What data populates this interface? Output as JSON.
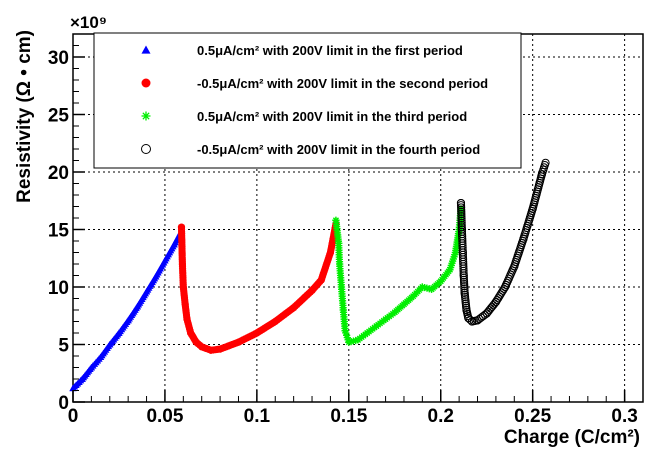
{
  "chart_data": {
    "type": "scatter",
    "xlabel": "Charge (C/cm²)",
    "ylabel": "Resistivity (Ω • cm)",
    "y_exponent_label": "×10⁹",
    "xlim": [
      0,
      0.31
    ],
    "ylim": [
      0,
      32
    ],
    "grid": true,
    "legend_position": "top-left",
    "x_ticks": [
      0,
      0.05,
      0.1,
      0.15,
      0.2,
      0.25,
      0.3
    ],
    "x_tick_labels": [
      "0",
      "0.05",
      "0.1",
      "0.15",
      "0.2",
      "0.25",
      "0.3"
    ],
    "y_ticks": [
      0,
      5,
      10,
      15,
      20,
      25,
      30
    ],
    "y_tick_labels": [
      "0",
      "5",
      "10",
      "15",
      "20",
      "25",
      "30"
    ],
    "series": [
      {
        "name": "0.5μA/cm² with 200V limit in the first period",
        "color": "#0000ff",
        "marker": "triangle",
        "x": [
          0,
          0.005,
          0.01,
          0.015,
          0.02,
          0.025,
          0.03,
          0.035,
          0.04,
          0.045,
          0.05,
          0.055,
          0.059
        ],
        "y": [
          1.2,
          2.0,
          3.0,
          3.9,
          5.0,
          6.0,
          7.1,
          8.3,
          9.6,
          10.9,
          12.3,
          13.7,
          14.9
        ]
      },
      {
        "name": "-0.5μA/cm² with 200V limit in the second period",
        "color": "#ff0000",
        "marker": "circle",
        "x": [
          0.059,
          0.0595,
          0.06,
          0.061,
          0.062,
          0.064,
          0.067,
          0.07,
          0.075,
          0.08,
          0.09,
          0.1,
          0.11,
          0.12,
          0.13,
          0.135,
          0.14,
          0.143
        ],
        "y": [
          15.2,
          12.0,
          10.0,
          8.5,
          7.2,
          6.0,
          5.2,
          4.8,
          4.5,
          4.6,
          5.2,
          6.0,
          7.0,
          8.2,
          9.7,
          10.6,
          13.0,
          15.5
        ]
      },
      {
        "name": "0.5μA/cm² with 200V limit in the third period",
        "color": "#00ee00",
        "marker": "star",
        "x": [
          0.143,
          0.1445,
          0.145,
          0.146,
          0.147,
          0.148,
          0.15,
          0.155,
          0.16,
          0.165,
          0.17,
          0.175,
          0.18,
          0.185,
          0.19,
          0.195,
          0.2,
          0.205,
          0.208,
          0.21,
          0.211
        ],
        "y": [
          15.8,
          13.8,
          12.0,
          10.0,
          8.0,
          6.2,
          5.2,
          5.4,
          6.0,
          6.6,
          7.2,
          7.8,
          8.5,
          9.2,
          10.0,
          9.8,
          10.5,
          11.5,
          13.0,
          15.0,
          16.8
        ]
      },
      {
        "name": "-0.5μA/cm² with 200V limit in the fourth period",
        "color": "#000000",
        "marker": "circle-open",
        "x": [
          0.211,
          0.2115,
          0.212,
          0.2125,
          0.213,
          0.214,
          0.215,
          0.217,
          0.22,
          0.225,
          0.23,
          0.235,
          0.24,
          0.245,
          0.25,
          0.255,
          0.257
        ],
        "y": [
          17.3,
          15.0,
          13.0,
          11.0,
          9.5,
          8.0,
          7.3,
          7.0,
          7.1,
          7.7,
          8.7,
          10.0,
          11.8,
          14.2,
          16.8,
          19.8,
          20.8
        ]
      }
    ]
  }
}
